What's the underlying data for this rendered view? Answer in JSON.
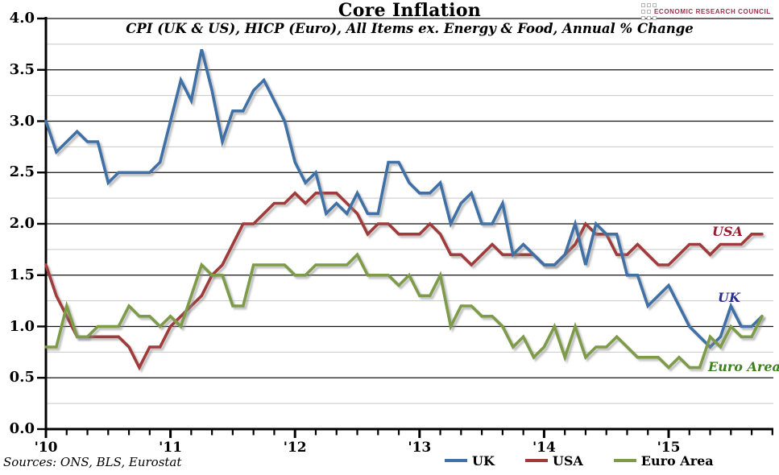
{
  "header": {
    "title": "Core Inflation",
    "subtitle": "CPI (UK & US), HICP (Euro), All Items ex. Energy & Food, Annual % Change",
    "logo_text": "ECONOMIC RESEARCH COUNCIL"
  },
  "footer": {
    "sources": "Sources: ONS, BLS, Eurostat"
  },
  "legend": {
    "items": [
      {
        "label": "UK",
        "color": "#4171A6"
      },
      {
        "label": "USA",
        "color": "#A03B3B"
      },
      {
        "label": "Euro Area",
        "color": "#7D9B49"
      }
    ]
  },
  "series_labels": {
    "usa": {
      "text": "USA",
      "color": "#981B2E"
    },
    "uk": {
      "text": "UK",
      "color": "#2A2F8F"
    },
    "euro": {
      "text": "Euro Area",
      "color": "#3C8020"
    }
  },
  "chart_data": {
    "type": "line",
    "title": "Core Inflation",
    "subtitle": "CPI (UK & US), HICP (Euro), All Items ex. Energy & Food, Annual % Change",
    "x_start": "2010-01",
    "x_end": "2015-10",
    "frequency": "monthly",
    "x_tick_labels": [
      "'10",
      "'11",
      "'12",
      "'13",
      "'14",
      "'15"
    ],
    "y_tick_labels": [
      "4.0",
      "3.5",
      "3.0",
      "2.5",
      "2.0",
      "1.5",
      "1.0",
      "0.5",
      "0.0"
    ],
    "ylim": [
      0.0,
      4.0
    ],
    "y_major_step": 0.5,
    "y_minor_step": 0.25,
    "grid": true,
    "legend_position": "bottom",
    "series": [
      {
        "name": "UK",
        "color": "#4171A6",
        "values": [
          3.0,
          2.7,
          2.8,
          2.9,
          2.8,
          2.8,
          2.4,
          2.5,
          2.5,
          2.5,
          2.5,
          2.6,
          3.0,
          3.4,
          3.2,
          3.7,
          3.3,
          2.8,
          3.1,
          3.1,
          3.3,
          3.4,
          3.2,
          3.0,
          2.6,
          2.4,
          2.5,
          2.1,
          2.2,
          2.1,
          2.3,
          2.1,
          2.1,
          2.6,
          2.6,
          2.4,
          2.3,
          2.3,
          2.4,
          2.0,
          2.2,
          2.3,
          2.0,
          2.0,
          2.2,
          1.7,
          1.8,
          1.7,
          1.6,
          1.6,
          1.7,
          2.0,
          1.6,
          2.0,
          1.9,
          1.9,
          1.5,
          1.5,
          1.2,
          1.3,
          1.4,
          1.2,
          1.0,
          0.9,
          0.8,
          0.9,
          1.2,
          1.0,
          1.0,
          1.1
        ]
      },
      {
        "name": "USA",
        "color": "#A03B3B",
        "values": [
          1.6,
          1.3,
          1.1,
          0.9,
          0.9,
          0.9,
          0.9,
          0.9,
          0.8,
          0.6,
          0.8,
          0.8,
          1.0,
          1.1,
          1.2,
          1.3,
          1.5,
          1.6,
          1.8,
          2.0,
          2.0,
          2.1,
          2.2,
          2.2,
          2.3,
          2.2,
          2.3,
          2.3,
          2.3,
          2.2,
          2.1,
          1.9,
          2.0,
          2.0,
          1.9,
          1.9,
          1.9,
          2.0,
          1.9,
          1.7,
          1.7,
          1.6,
          1.7,
          1.8,
          1.7,
          1.7,
          1.7,
          1.7,
          1.6,
          1.6,
          1.7,
          1.8,
          2.0,
          1.9,
          1.9,
          1.7,
          1.7,
          1.8,
          1.7,
          1.6,
          1.6,
          1.7,
          1.8,
          1.8,
          1.7,
          1.8,
          1.8,
          1.8,
          1.9,
          1.9
        ]
      },
      {
        "name": "Euro Area",
        "color": "#7D9B49",
        "values": [
          0.8,
          0.8,
          1.2,
          0.9,
          0.9,
          1.0,
          1.0,
          1.0,
          1.2,
          1.1,
          1.1,
          1.0,
          1.1,
          1.0,
          1.3,
          1.6,
          1.5,
          1.5,
          1.2,
          1.2,
          1.6,
          1.6,
          1.6,
          1.6,
          1.5,
          1.5,
          1.6,
          1.6,
          1.6,
          1.6,
          1.7,
          1.5,
          1.5,
          1.5,
          1.4,
          1.5,
          1.3,
          1.3,
          1.5,
          1.0,
          1.2,
          1.2,
          1.1,
          1.1,
          1.0,
          0.8,
          0.9,
          0.7,
          0.8,
          1.0,
          0.7,
          1.0,
          0.7,
          0.8,
          0.8,
          0.9,
          0.8,
          0.7,
          0.7,
          0.7,
          0.6,
          0.7,
          0.6,
          0.6,
          0.9,
          0.8,
          1.0,
          0.9,
          0.9,
          1.1
        ]
      }
    ]
  }
}
